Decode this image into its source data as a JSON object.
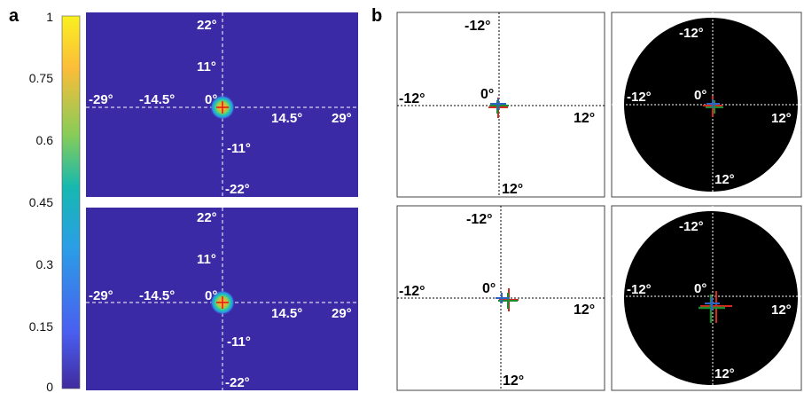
{
  "panels": {
    "a": "a",
    "b": "b"
  },
  "colorbar": {
    "ticks": [
      "1",
      "0.75",
      "0.6",
      "0.45",
      "0.3",
      "0.15",
      "0"
    ]
  },
  "heatmap_labels": {
    "y_top": "22°",
    "y_mid": "11°",
    "origin": "0°",
    "x_neg_far": "-29°",
    "x_neg_near": "-14.5°",
    "x_pos_near": "14.5°",
    "x_pos_far": "29°",
    "y_neg_mid": "-11°",
    "y_neg_far": "-22°"
  },
  "field_labels": {
    "top": "-12°",
    "left": "-12°",
    "origin": "0°",
    "right": "12°",
    "bottom": "12°"
  },
  "colors": {
    "heatmap_background": "#3b2aa6",
    "colorbar_gradient": [
      "#f9f021",
      "#fbbd39",
      "#86cc58",
      "#16b8b0",
      "#2a9ee6",
      "#4a5ef0",
      "#402b9e"
    ],
    "marker_red": "#d42a1e",
    "marker_green": "#1f8a2e",
    "marker_blue": "#2b63c8",
    "disc": "#000000"
  }
}
